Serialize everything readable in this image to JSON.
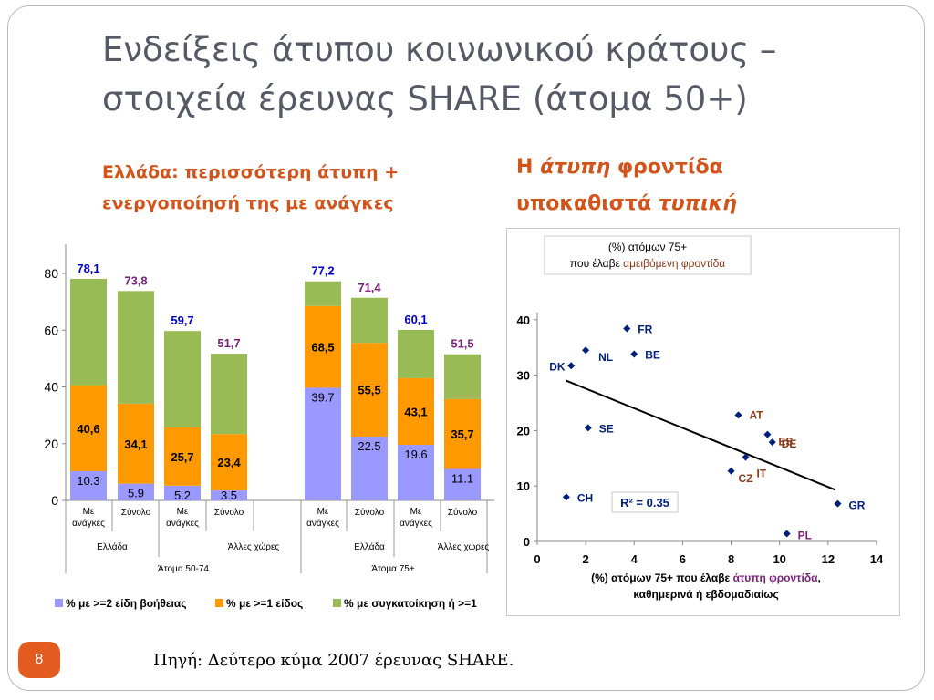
{
  "slide": {
    "title_line1": "Ενδείξεις άτυπου κοινωνικού κράτους –",
    "title_line2": "στοιχεία έρευνας SHARE (άτομα 50+)",
    "left_subtitle_line1": "Ελλάδα: περισσότερη άτυπη +",
    "left_subtitle_line2": "ενεργοποίησή της  με ανάγκες",
    "right_subtitle": {
      "p1": "Η ",
      "p2": "άτυπη",
      "p3": " φροντίδα",
      "p4": "υποκαθιστά ",
      "p5": "τυπική"
    },
    "page_number": "8",
    "source": "Πηγή: Δεύτερο κύμα 2007 έρευνας SHARE."
  },
  "colors": {
    "purple": "#9999ff",
    "orange": "#ff9900",
    "green": "#99bb55",
    "label_blue": "#0000cc",
    "label_purple": "#7a1f7a",
    "diamond": "#001f7a",
    "title_grey": "#555a66",
    "accent": "#d2541b"
  },
  "chart_data": [
    {
      "type": "bar",
      "stacked": true,
      "ylim": [
        0,
        80
      ],
      "yticks": [
        "0",
        "20",
        "40",
        "60",
        "80"
      ],
      "grid": false,
      "legend_position": "bottom",
      "legend": [
        "% με >=2 είδη βοήθειας",
        "% με >=1 είδος",
        "% με συγκατοίκηση ή >=1"
      ],
      "bars": [
        {
          "cat": "Με ανάγκες",
          "seg": [
            10.3,
            40.6,
            78.1
          ],
          "labels": [
            "10.3",
            "40,6",
            "78,1"
          ],
          "top_color": "blue"
        },
        {
          "cat": "Σύνολο",
          "seg": [
            5.9,
            34.1,
            73.8
          ],
          "labels": [
            "5.9",
            "34,1",
            "73,8"
          ],
          "top_color": "purple"
        },
        {
          "cat": "Με ανάγκες",
          "seg": [
            5.2,
            25.7,
            59.7
          ],
          "labels": [
            "5.2",
            "25,7",
            "59,7"
          ],
          "top_color": "blue"
        },
        {
          "cat": "Σύνολο",
          "seg": [
            3.5,
            23.4,
            51.7
          ],
          "labels": [
            "3.5",
            "23,4",
            "51,7"
          ],
          "top_color": "purple"
        },
        {
          "cat": "Με ανάγκες",
          "seg": [
            39.7,
            68.5,
            77.2
          ],
          "labels": [
            "39.7",
            "68,5",
            "77,2"
          ],
          "top_color": "blue"
        },
        {
          "cat": "Σύνολο",
          "seg": [
            22.5,
            55.5,
            71.4
          ],
          "labels": [
            "22.5",
            "55,5",
            "71,4"
          ],
          "top_color": "purple"
        },
        {
          "cat": "Με ανάγκες",
          "seg": [
            19.6,
            43.1,
            60.1
          ],
          "labels": [
            "19.6",
            "43,1",
            "60,1"
          ],
          "top_color": "blue"
        },
        {
          "cat": "Σύνολο",
          "seg": [
            11.1,
            35.7,
            51.5
          ],
          "labels": [
            "11.1",
            "35,7",
            "51,5"
          ],
          "top_color": "purple"
        }
      ],
      "groups_level2": [
        "Ελλάδα",
        "Άλλες χώρες",
        "Ελλάδα",
        "Άλλες χώρες"
      ],
      "groups_level3": [
        "Άτομα 50-74",
        "Άτομα 75+"
      ]
    },
    {
      "type": "scatter",
      "title_line1": "(%) ατόμων 75+",
      "title_line2_a": "που έλαβε ",
      "title_line2_b": "αμειβόμενη φροντίδα",
      "xlabel_a": "(%) ατόμων 75+  που έλαβε ",
      "xlabel_b": "άτυπη φροντίδα",
      "xlabel_c": ",",
      "xlabel_line2": "καθημερινά ή εβδομαδιαίως",
      "xlim": [
        0,
        14
      ],
      "ylim": [
        0,
        40
      ],
      "xticks": [
        "0",
        "2",
        "4",
        "6",
        "8",
        "10",
        "12",
        "14"
      ],
      "yticks": [
        "0",
        "10",
        "20",
        "30",
        "40"
      ],
      "grid": false,
      "r2_label": "R² = 0.35",
      "trendline": [
        [
          1.2,
          29.0
        ],
        [
          12.3,
          9.3
        ]
      ],
      "points": [
        {
          "label": "FR",
          "x": 3.7,
          "y": 38.4,
          "c": "dark"
        },
        {
          "label": "NL",
          "x": 2.0,
          "y": 34.5,
          "c": "dark"
        },
        {
          "label": "BE",
          "x": 4.0,
          "y": 33.8,
          "c": "dark"
        },
        {
          "label": "DK",
          "x": 1.4,
          "y": 31.7,
          "c": "dark"
        },
        {
          "label": "AT",
          "x": 8.3,
          "y": 22.8,
          "c": "brown"
        },
        {
          "label": "ES",
          "x": 9.5,
          "y": 19.3,
          "c": "brown"
        },
        {
          "label": "DE",
          "x": 9.7,
          "y": 17.9,
          "c": "brown"
        },
        {
          "label": "SE",
          "x": 2.1,
          "y": 20.5,
          "c": "dark"
        },
        {
          "label": "IT",
          "x": 8.6,
          "y": 15.2,
          "c": "brown"
        },
        {
          "label": "CZ",
          "x": 8.0,
          "y": 12.7,
          "c": "brown"
        },
        {
          "label": "CH",
          "x": 1.2,
          "y": 8.0,
          "c": "dark"
        },
        {
          "label": "GR",
          "x": 12.4,
          "y": 6.8,
          "c": "dark"
        },
        {
          "label": "PL",
          "x": 10.3,
          "y": 1.4,
          "c": "purple"
        }
      ]
    }
  ]
}
